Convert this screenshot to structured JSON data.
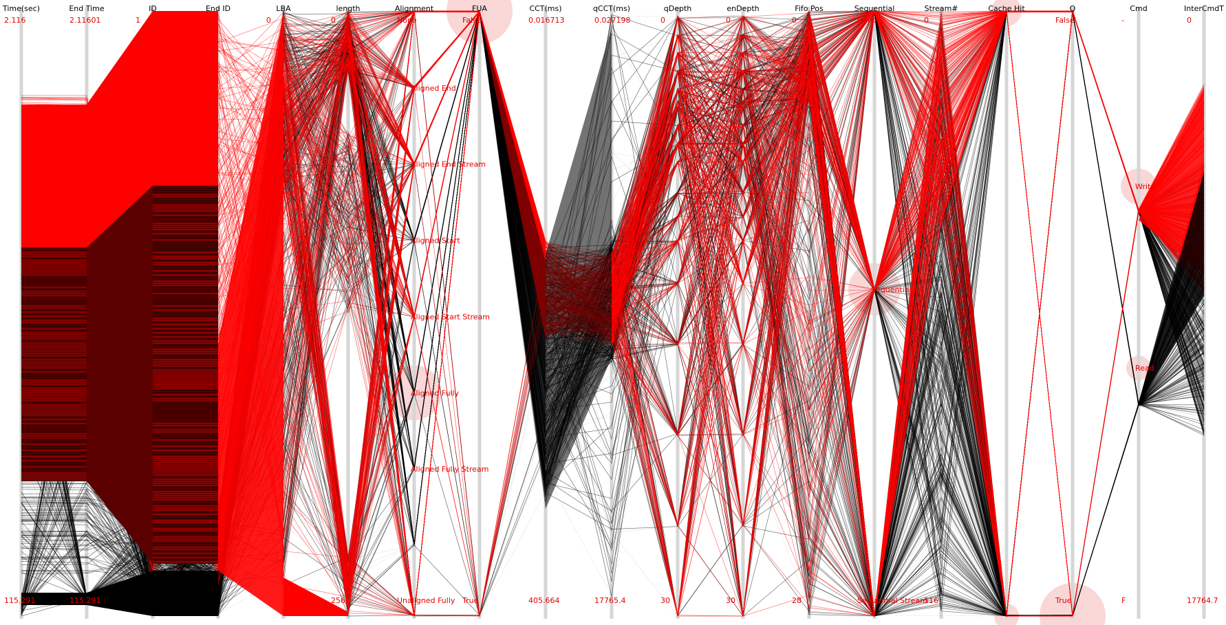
{
  "chart_data": {
    "type": "parallel-coordinates",
    "colors": {
      "selected": "#ff0000",
      "unselected": "#000000",
      "label": "#e60000",
      "axis": "#d6d6d6",
      "halo": "#f7c9c9"
    },
    "axes": [
      {
        "name": "Time(sec)",
        "top": "2.116",
        "bottom": "115.291",
        "labels": []
      },
      {
        "name": "End Time",
        "top": "2.11601",
        "bottom": "115.291",
        "labels": []
      },
      {
        "name": "ID",
        "top": "1",
        "bottom": "",
        "labels": []
      },
      {
        "name": "End ID",
        "top": "",
        "bottom": "",
        "labels": []
      },
      {
        "name": "LBA",
        "top": "0",
        "bottom": "",
        "labels": []
      },
      {
        "name": "length",
        "top": "0",
        "bottom": "256",
        "labels": []
      },
      {
        "name": "Alignment",
        "top": "None",
        "bottom": "Unaligned Fully",
        "labels": [
          "Aligned End",
          "Aligned End Stream",
          "Aligned Start",
          "Aligned Start Stream",
          "Aligned Fully",
          "Aligned Fully Stream"
        ]
      },
      {
        "name": "FUA",
        "top": "False",
        "bottom": "True",
        "labels": []
      },
      {
        "name": "CCT(ms)",
        "top": "0.016713",
        "bottom": "405.664",
        "labels": []
      },
      {
        "name": "qCCT(ms)",
        "top": "0.027198",
        "bottom": "17765.4",
        "labels": []
      },
      {
        "name": "qDepth",
        "top": "0",
        "bottom": "30",
        "labels": []
      },
      {
        "name": "enDepth",
        "top": "0",
        "bottom": "30",
        "labels": []
      },
      {
        "name": "Fifo Pos",
        "top": "0",
        "bottom": "28",
        "labels": []
      },
      {
        "name": "Sequential",
        "top": "None",
        "bottom": "Sequential Stream",
        "labels": [
          "Sequential"
        ]
      },
      {
        "name": "Stream#",
        "top": "0",
        "bottom": "516",
        "labels": []
      },
      {
        "name": "Cache Hit",
        "top": "",
        "bottom": "",
        "labels": []
      },
      {
        "name": "Q",
        "top": "False",
        "bottom": "True",
        "labels": []
      },
      {
        "name": "Cmd",
        "top": "-",
        "bottom": "F",
        "labels": [
          "Write",
          "Read"
        ]
      },
      {
        "name": "InterCmdT",
        "top": "0",
        "bottom": "17764.7",
        "labels": []
      }
    ],
    "highlighted_categories": [
      "False",
      "Aligned Fully",
      "Sequential",
      "True",
      "Write",
      "Read"
    ]
  }
}
